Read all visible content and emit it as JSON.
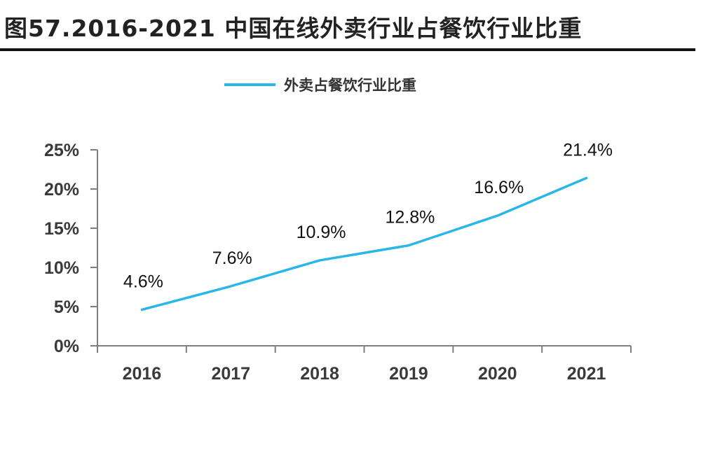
{
  "header": {
    "title": "图57.2016-2021 中国在线外卖行业占餐饮行业比重"
  },
  "chart_data": {
    "type": "line",
    "title": "图57.2016-2021 中国在线外卖行业占餐饮行业比重",
    "xlabel": "",
    "ylabel": "",
    "categories": [
      "2016",
      "2017",
      "2018",
      "2019",
      "2020",
      "2021"
    ],
    "series": [
      {
        "name": "外卖占餐饮行业比重",
        "values": [
          4.6,
          7.6,
          10.9,
          12.8,
          16.6,
          21.4
        ],
        "labels": [
          "4.6%",
          "7.6%",
          "10.9%",
          "12.8%",
          "16.6%",
          "21.4%"
        ],
        "color": "#29b6e8"
      }
    ],
    "ylim": [
      0,
      25
    ],
    "yticks": [
      0,
      5,
      10,
      15,
      20,
      25
    ],
    "ytick_labels": [
      "0%",
      "5%",
      "10%",
      "15%",
      "20%",
      "25%"
    ],
    "grid": false,
    "legend": {
      "position": "top-center",
      "entries": [
        "外卖占餐饮行业比重"
      ]
    },
    "axis_color": "#7f7f7f"
  }
}
